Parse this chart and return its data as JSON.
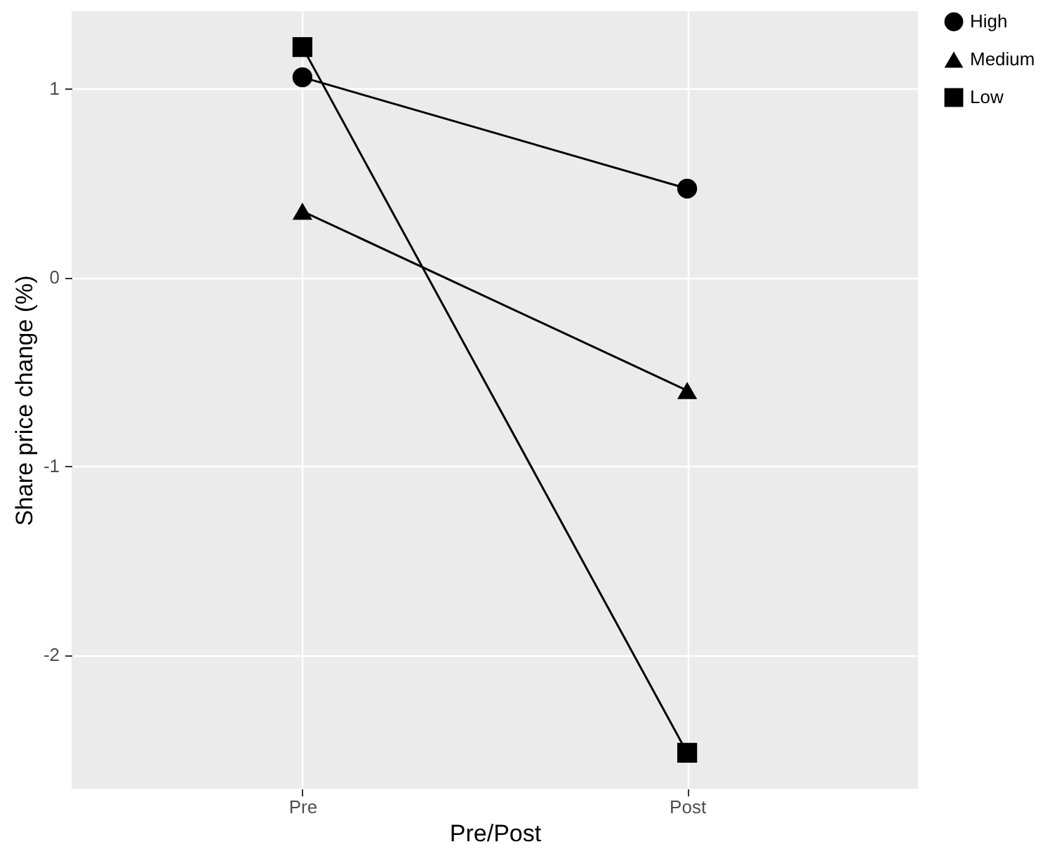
{
  "chart_data": {
    "type": "line",
    "xlabel": "Pre/Post",
    "ylabel": "Share price change (%)",
    "categories": [
      "Pre",
      "Post"
    ],
    "series": [
      {
        "name": "High",
        "color": "#000000",
        "marker": "circle",
        "values": [
          1.06,
          0.47
        ]
      },
      {
        "name": "Medium",
        "color": "#000000",
        "marker": "triangle",
        "values": [
          0.35,
          -0.6
        ]
      },
      {
        "name": "Low",
        "color": "#000000",
        "marker": "square",
        "values": [
          1.22,
          -2.52
        ]
      }
    ],
    "ylim": [
      -2.71,
      1.41
    ],
    "yticks": [
      -2,
      -1,
      0,
      1
    ],
    "grid": true,
    "legend": "right"
  }
}
